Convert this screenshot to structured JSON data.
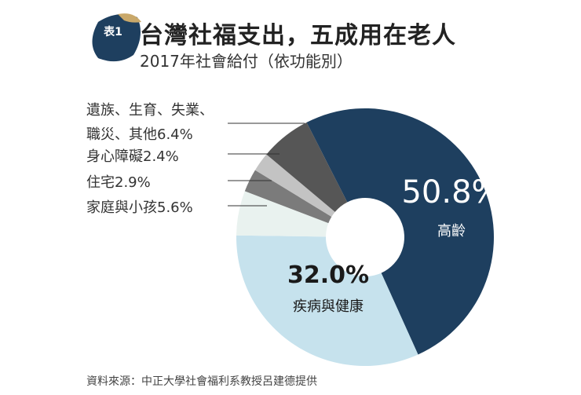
{
  "header": {
    "badge": "表1",
    "title": "台灣社福支出，五成用在老人",
    "subtitle": "2017年社會給付（依功能別）"
  },
  "chart_data": {
    "type": "donut",
    "categories": [
      "高齡",
      "疾病與健康",
      "家庭與小孩",
      "住宅",
      "身心障礙",
      "遺族、生育、失業、職災、其他"
    ],
    "values": [
      50.8,
      32.0,
      5.6,
      2.9,
      2.4,
      6.4
    ],
    "value_labels": [
      "50.8%",
      "32.0%",
      "5.6%",
      "2.9%",
      "2.4%",
      "6.4%"
    ],
    "colors": [
      "#1e3f5f",
      "#c6e2ed",
      "#e9f2ef",
      "#7b7b7b",
      "#c3c3c3",
      "#565656"
    ]
  },
  "footer": {
    "source": "資料來源：中正大學社會福利系教授呂建德提供"
  }
}
